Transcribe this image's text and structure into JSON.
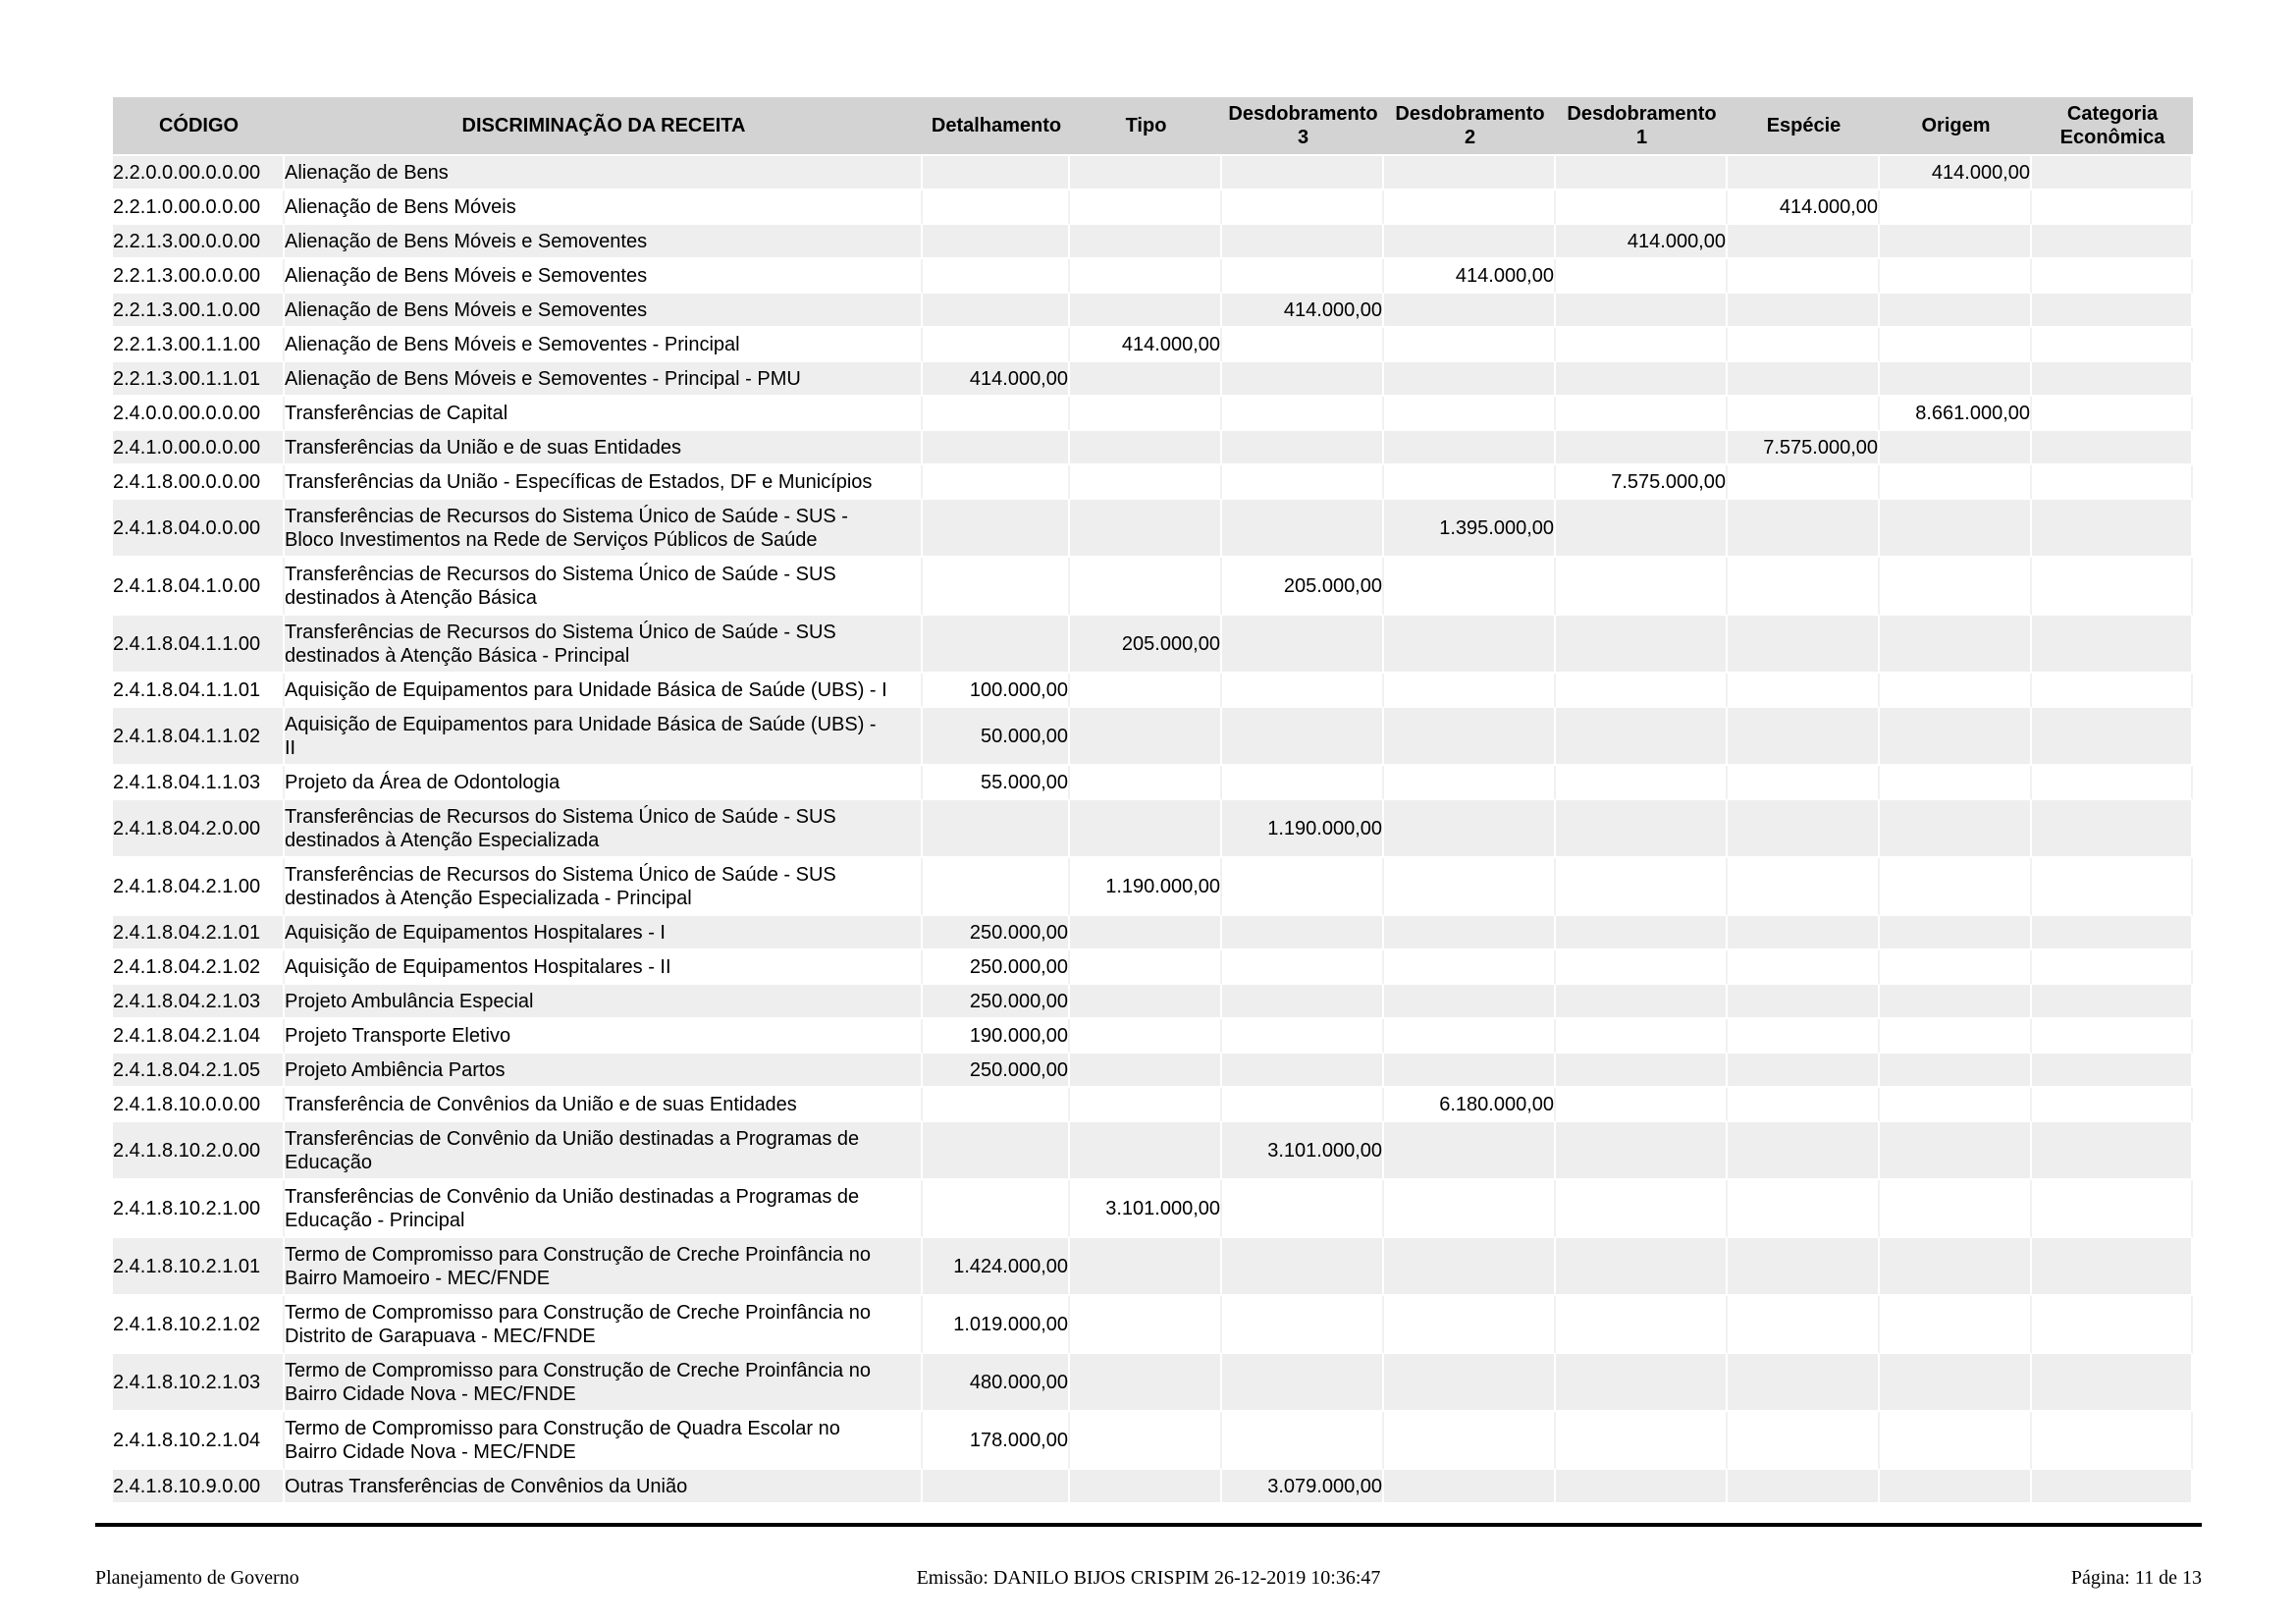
{
  "colors": {
    "header_bg": "#d3d3d3",
    "row_alt_bg": "#eeeeee",
    "rule": "#000000"
  },
  "table": {
    "columns": [
      {
        "key": "codigo",
        "label": "CÓDIGO"
      },
      {
        "key": "discriminacao",
        "label": "DISCRIMINAÇÃO DA RECEITA"
      },
      {
        "key": "detalhamento",
        "label": "Detalhamento"
      },
      {
        "key": "tipo",
        "label": "Tipo"
      },
      {
        "key": "desdobramento3",
        "label": "Desdobramento\n3"
      },
      {
        "key": "desdobramento2",
        "label": "Desdobramento\n2"
      },
      {
        "key": "desdobramento1",
        "label": "Desdobramento\n1"
      },
      {
        "key": "especie",
        "label": "Espécie"
      },
      {
        "key": "origem",
        "label": "Origem"
      },
      {
        "key": "categoria_economica",
        "label": "Categoria\nEconômica"
      }
    ],
    "rows": [
      {
        "codigo": "2.2.0.0.00.0.0.00",
        "discriminacao": "Alienação de Bens",
        "origem": "414.000,00"
      },
      {
        "codigo": "2.2.1.0.00.0.0.00",
        "discriminacao": "Alienação de Bens Móveis",
        "especie": "414.000,00"
      },
      {
        "codigo": "2.2.1.3.00.0.0.00",
        "discriminacao": "Alienação de Bens Móveis e Semoventes",
        "desdobramento1": "414.000,00"
      },
      {
        "codigo": "2.2.1.3.00.0.0.00",
        "discriminacao": "Alienação de Bens Móveis e Semoventes",
        "desdobramento2": "414.000,00"
      },
      {
        "codigo": "2.2.1.3.00.1.0.00",
        "discriminacao": "Alienação de Bens Móveis e Semoventes",
        "desdobramento3": "414.000,00"
      },
      {
        "codigo": "2.2.1.3.00.1.1.00",
        "discriminacao": "Alienação de Bens Móveis e Semoventes - Principal",
        "tipo": "414.000,00"
      },
      {
        "codigo": "2.2.1.3.00.1.1.01",
        "discriminacao": "Alienação de Bens Móveis e Semoventes - Principal - PMU",
        "detalhamento": "414.000,00"
      },
      {
        "codigo": "2.4.0.0.00.0.0.00",
        "discriminacao": "Transferências de Capital",
        "origem": "8.661.000,00"
      },
      {
        "codigo": "2.4.1.0.00.0.0.00",
        "discriminacao": "Transferências da União e de suas Entidades",
        "especie": "7.575.000,00"
      },
      {
        "codigo": "2.4.1.8.00.0.0.00",
        "discriminacao": "Transferências da União - Específicas de Estados, DF e Municípios",
        "desdobramento1": "7.575.000,00"
      },
      {
        "codigo": "2.4.1.8.04.0.0.00",
        "discriminacao": "Transferências de Recursos do Sistema Único de Saúde - SUS -\nBloco Investimentos na Rede de Serviços Públicos de Saúde",
        "desdobramento2": "1.395.000,00"
      },
      {
        "codigo": "2.4.1.8.04.1.0.00",
        "discriminacao": "Transferências de Recursos do Sistema Único de Saúde - SUS\ndestinados à Atenção Básica",
        "desdobramento3": "205.000,00"
      },
      {
        "codigo": "2.4.1.8.04.1.1.00",
        "discriminacao": "Transferências de Recursos do Sistema Único de Saúde - SUS\ndestinados à Atenção Básica - Principal",
        "tipo": "205.000,00"
      },
      {
        "codigo": "2.4.1.8.04.1.1.01",
        "discriminacao": "Aquisição de Equipamentos para Unidade Básica de Saúde (UBS) - I",
        "detalhamento": "100.000,00"
      },
      {
        "codigo": "2.4.1.8.04.1.1.02",
        "discriminacao": "Aquisição de Equipamentos para Unidade Básica de Saúde (UBS) -\nII",
        "detalhamento": "50.000,00"
      },
      {
        "codigo": "2.4.1.8.04.1.1.03",
        "discriminacao": "Projeto da Área de Odontologia",
        "detalhamento": "55.000,00"
      },
      {
        "codigo": "2.4.1.8.04.2.0.00",
        "discriminacao": "Transferências de Recursos do Sistema Único de Saúde - SUS\ndestinados à Atenção Especializada",
        "desdobramento3": "1.190.000,00"
      },
      {
        "codigo": "2.4.1.8.04.2.1.00",
        "discriminacao": "Transferências de Recursos do Sistema Único de Saúde - SUS\ndestinados à Atenção Especializada - Principal",
        "tipo": "1.190.000,00"
      },
      {
        "codigo": "2.4.1.8.04.2.1.01",
        "discriminacao": "Aquisição de Equipamentos Hospitalares - I",
        "detalhamento": "250.000,00"
      },
      {
        "codigo": "2.4.1.8.04.2.1.02",
        "discriminacao": "Aquisição de Equipamentos Hospitalares - II",
        "detalhamento": "250.000,00"
      },
      {
        "codigo": "2.4.1.8.04.2.1.03",
        "discriminacao": "Projeto Ambulância Especial",
        "detalhamento": "250.000,00"
      },
      {
        "codigo": "2.4.1.8.04.2.1.04",
        "discriminacao": "Projeto Transporte Eletivo",
        "detalhamento": "190.000,00"
      },
      {
        "codigo": "2.4.1.8.04.2.1.05",
        "discriminacao": "Projeto Ambiência Partos",
        "detalhamento": "250.000,00"
      },
      {
        "codigo": "2.4.1.8.10.0.0.00",
        "discriminacao": "Transferência de Convênios da União e de suas Entidades",
        "desdobramento2": "6.180.000,00"
      },
      {
        "codigo": "2.4.1.8.10.2.0.00",
        "discriminacao": "Transferências de Convênio da União destinadas a Programas de\nEducação",
        "desdobramento3": "3.101.000,00"
      },
      {
        "codigo": "2.4.1.8.10.2.1.00",
        "discriminacao": "Transferências de Convênio da União destinadas a Programas de\nEducação - Principal",
        "tipo": "3.101.000,00"
      },
      {
        "codigo": "2.4.1.8.10.2.1.01",
        "discriminacao": "Termo de Compromisso para Construção de Creche Proinfância no\nBairro Mamoeiro - MEC/FNDE",
        "detalhamento": "1.424.000,00"
      },
      {
        "codigo": "2.4.1.8.10.2.1.02",
        "discriminacao": "Termo de Compromisso para Construção de Creche Proinfância no\nDistrito de Garapuava - MEC/FNDE",
        "detalhamento": "1.019.000,00"
      },
      {
        "codigo": "2.4.1.8.10.2.1.03",
        "discriminacao": "Termo de Compromisso para Construção de Creche Proinfância no\nBairro Cidade Nova - MEC/FNDE",
        "detalhamento": "480.000,00"
      },
      {
        "codigo": "2.4.1.8.10.2.1.04",
        "discriminacao": "Termo de Compromisso para Construção de Quadra Escolar no\nBairro Cidade Nova - MEC/FNDE",
        "detalhamento": "178.000,00"
      },
      {
        "codigo": "2.4.1.8.10.9.0.00",
        "discriminacao": "Outras Transferências de Convênios da União",
        "desdobramento3": "3.079.000,00"
      }
    ]
  },
  "footer": {
    "left": "Planejamento de Governo",
    "emission": "Emissão: DANILO BIJOS CRISPIM 26-12-2019 10:36:47",
    "page": "Página: 11 de 13"
  }
}
